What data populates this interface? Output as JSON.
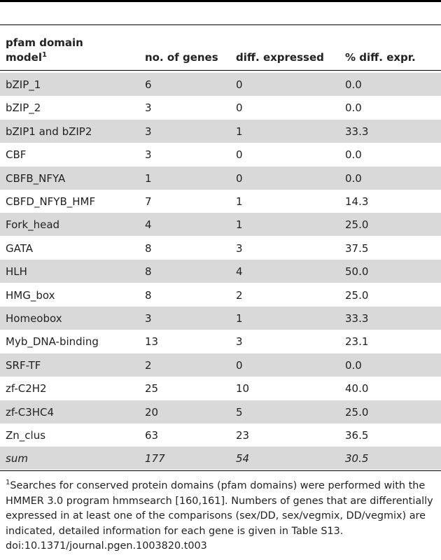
{
  "table": {
    "header": [
      "pfam domain model",
      "no. of genes",
      "diff. expressed",
      "% diff. expr."
    ],
    "header_sup": "1",
    "rows": [
      [
        "bZIP_1",
        "6",
        "0",
        "0.0"
      ],
      [
        "bZIP_2",
        "3",
        "0",
        "0.0"
      ],
      [
        "bZIP1 and bZIP2",
        "3",
        "1",
        "33.3"
      ],
      [
        "CBF",
        "3",
        "0",
        "0.0"
      ],
      [
        "CBFB_NFYA",
        "1",
        "0",
        "0.0"
      ],
      [
        "CBFD_NFYB_HMF",
        "7",
        "1",
        "14.3"
      ],
      [
        "Fork_head",
        "4",
        "1",
        "25.0"
      ],
      [
        "GATA",
        "8",
        "3",
        "37.5"
      ],
      [
        "HLH",
        "8",
        "4",
        "50.0"
      ],
      [
        "HMG_box",
        "8",
        "2",
        "25.0"
      ],
      [
        "Homeobox",
        "3",
        "1",
        "33.3"
      ],
      [
        "Myb_DNA-binding",
        "13",
        "3",
        "23.1"
      ],
      [
        "SRF-TF",
        "2",
        "0",
        "0.0"
      ],
      [
        "zf-C2H2",
        "25",
        "10",
        "40.0"
      ],
      [
        "zf-C3HC4",
        "20",
        "5",
        "25.0"
      ],
      [
        "Zn_clus",
        "63",
        "23",
        "36.5"
      ]
    ],
    "sum_row": [
      "sum",
      "177",
      "54",
      "30.5"
    ]
  },
  "footnote": {
    "marker": "1",
    "text": "Searches for conserved protein domains (pfam domains) were performed with the HMMER 3.0 program hmmsearch [160,161]. Numbers of genes that are differentially expressed in at least one of the comparisons (sex/DD, sex/vegmix, DD/vegmix) are indicated, detailed information for each gene is given in Table S13.",
    "doi": "doi:10.1371/journal.pgen.1003820.t003"
  }
}
